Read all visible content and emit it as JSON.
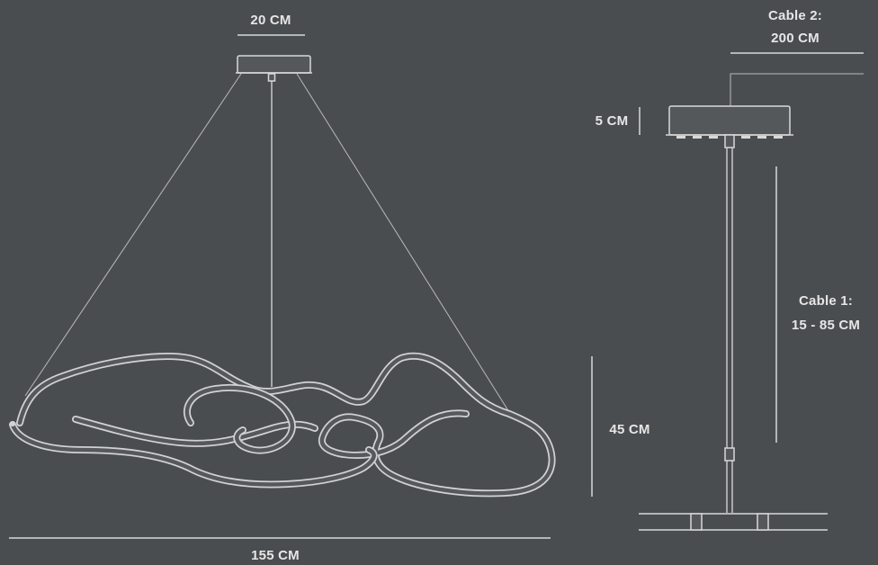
{
  "labels": {
    "canopy_width": "20 CM",
    "total_width": "155 CM",
    "fixture_height": "45 CM",
    "canopy_height": "5 CM",
    "cable1_title": "Cable 1:",
    "cable1_range": "15 - 85 CM",
    "cable2_title": "Cable 2:",
    "cable2_length": "200 CM"
  },
  "colors": {
    "background": "#4a4d50",
    "lines": "#d8d8d8",
    "text": "#e6e6e6"
  }
}
